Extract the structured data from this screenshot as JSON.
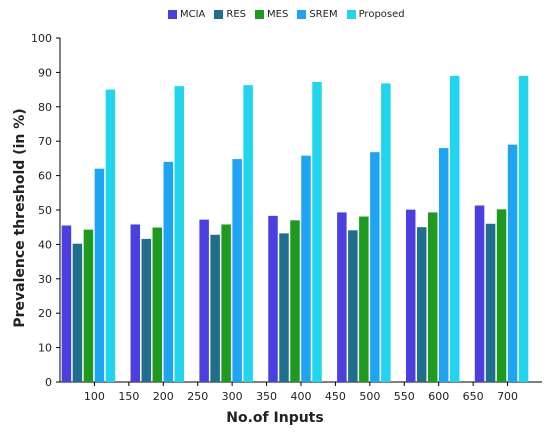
{
  "chart_data": {
    "type": "bar",
    "xlabel": "No.of Inputs",
    "ylabel": "Prevalence threshold (in %)",
    "ylim": [
      0,
      100
    ],
    "y_ticks": [
      0,
      10,
      20,
      30,
      40,
      50,
      60,
      70,
      80,
      90,
      100
    ],
    "x_tick_labels": [
      "100",
      "150",
      "200",
      "250",
      "300",
      "350",
      "400",
      "450",
      "500",
      "550",
      "600",
      "650",
      "700"
    ],
    "categories": [
      "100",
      "200",
      "300",
      "400",
      "500",
      "600",
      "700"
    ],
    "grid": false,
    "legend_position": "top",
    "series": [
      {
        "name": "MCIA",
        "color": "#4b3fe0",
        "values": [
          45.5,
          45.8,
          47.2,
          48.3,
          49.3,
          50.1,
          51.3
        ]
      },
      {
        "name": "RES",
        "color": "#1f6e8c",
        "values": [
          40.2,
          41.6,
          42.8,
          43.2,
          44.1,
          45.0,
          46.0
        ]
      },
      {
        "name": "MES",
        "color": "#1e9a1e",
        "values": [
          44.3,
          44.9,
          45.8,
          47.0,
          48.1,
          49.3,
          50.2
        ]
      },
      {
        "name": "SREM",
        "color": "#1ea4f0",
        "values": [
          62.0,
          64.0,
          64.8,
          65.8,
          66.8,
          68.0,
          69.0
        ]
      },
      {
        "name": "Proposed",
        "color": "#22d5ee",
        "values": [
          85.0,
          86.0,
          86.3,
          87.2,
          86.8,
          89.0,
          89.0
        ]
      }
    ]
  }
}
